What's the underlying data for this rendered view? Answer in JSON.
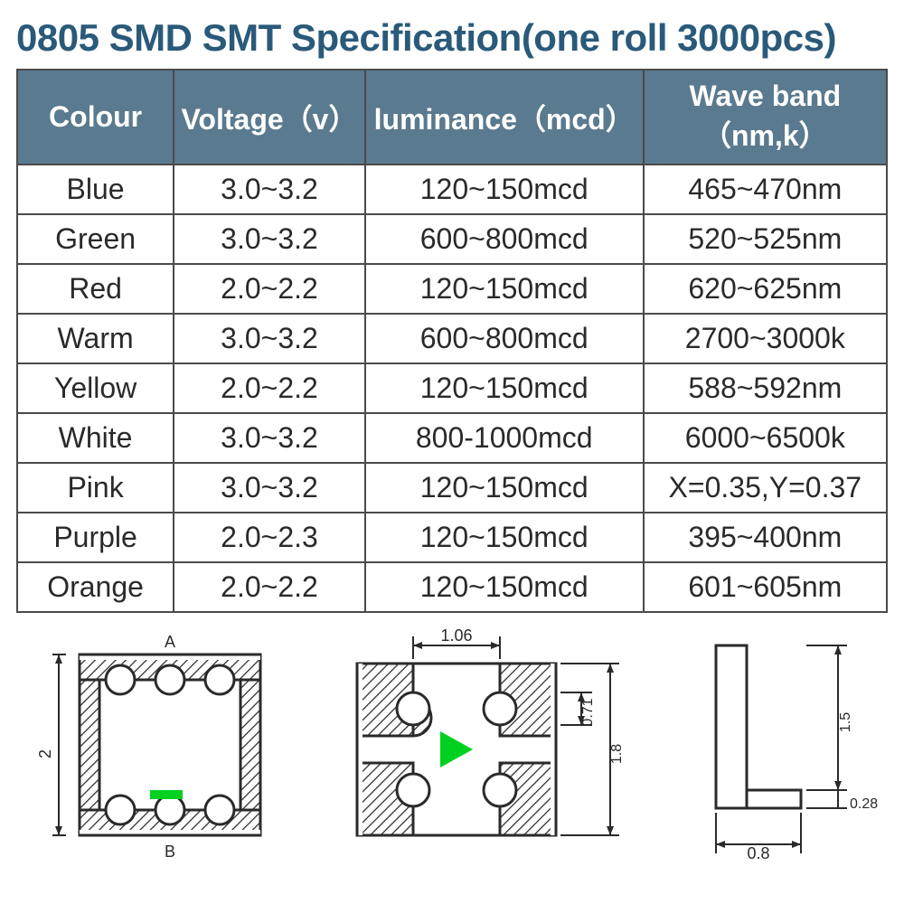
{
  "title": "0805 SMD SMT Specification(one roll 3000pcs)",
  "colors": {
    "title_color": "#2a5a7a",
    "header_bg": "#5a7a8f",
    "header_text": "#ffffff",
    "cell_text": "#2a2a2a",
    "border_color": "#4a4a4a",
    "background": "#ffffff",
    "diagram_stroke": "#2a2a2a",
    "diagram_highlight": "#00d020"
  },
  "table": {
    "columns": [
      "Colour",
      "Voltage（v）",
      "luminance（mcd）",
      "Wave band（nm,k）"
    ],
    "rows": [
      [
        "Blue",
        "3.0~3.2",
        "120~150mcd",
        "465~470nm"
      ],
      [
        "Green",
        "3.0~3.2",
        "600~800mcd",
        "520~525nm"
      ],
      [
        "Red",
        "2.0~2.2",
        "120~150mcd",
        "620~625nm"
      ],
      [
        "Warm",
        "3.0~3.2",
        "600~800mcd",
        "2700~3000k"
      ],
      [
        "Yellow",
        "2.0~2.2",
        "120~150mcd",
        "588~592nm"
      ],
      [
        "White",
        "3.0~3.2",
        "800-1000mcd",
        "6000~6500k"
      ],
      [
        "Pink",
        "3.0~3.2",
        "120~150mcd",
        "X=0.35,Y=0.37"
      ],
      [
        "Purple",
        "2.0~2.3",
        "120~150mcd",
        "395~400nm"
      ],
      [
        "Orange",
        "2.0~2.2",
        "120~150mcd",
        "601~605nm"
      ]
    ],
    "col_widths_pct": [
      18,
      22,
      32,
      28
    ],
    "header_fontsize": 32,
    "cell_fontsize": 32
  },
  "diagrams": {
    "left": {
      "label_top": "A",
      "label_bottom": "B",
      "dim_height": "2"
    },
    "center": {
      "dim_top": "1.06",
      "dim_right1": "0.71",
      "dim_right2": "1.8"
    },
    "right": {
      "dim_height": "1.5",
      "dim_bottom1": "0.8",
      "dim_bottom2": "0.28"
    }
  }
}
